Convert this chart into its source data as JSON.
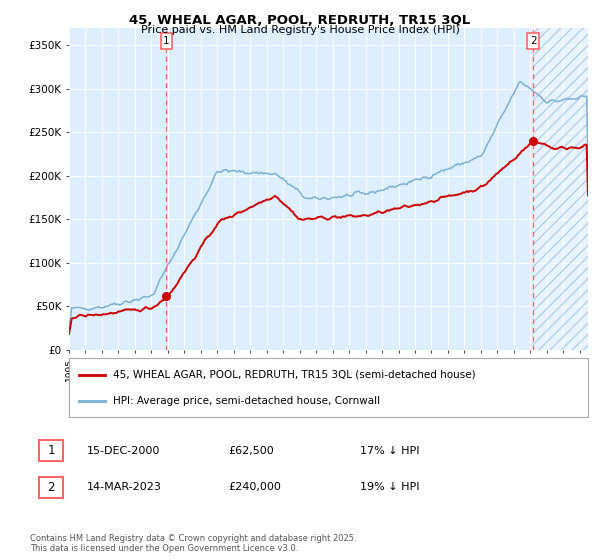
{
  "title": "45, WHEAL AGAR, POOL, REDRUTH, TR15 3QL",
  "subtitle": "Price paid vs. HM Land Registry's House Price Index (HPI)",
  "legend_line1": "45, WHEAL AGAR, POOL, REDRUTH, TR15 3QL (semi-detached house)",
  "legend_line2": "HPI: Average price, semi-detached house, Cornwall",
  "annotation1_date": "15-DEC-2000",
  "annotation1_price": "£62,500",
  "annotation1_hpi": "17% ↓ HPI",
  "annotation2_date": "14-MAR-2023",
  "annotation2_price": "£240,000",
  "annotation2_hpi": "19% ↓ HPI",
  "footer": "Contains HM Land Registry data © Crown copyright and database right 2025.\nThis data is licensed under the Open Government Licence v3.0.",
  "hpi_color": "#7bafd4",
  "price_color": "#cc0000",
  "bg_color": "#ddeeff",
  "vline_color": "#ff6666",
  "grid_color": "#ffffff",
  "hatch_color": "#c8d8e8",
  "ylim": [
    0,
    370000
  ],
  "xlim_start": 1995.0,
  "xlim_end": 2026.5,
  "t1": 2000.9167,
  "p1": 62500,
  "t2": 2023.1667,
  "p2": 240000
}
